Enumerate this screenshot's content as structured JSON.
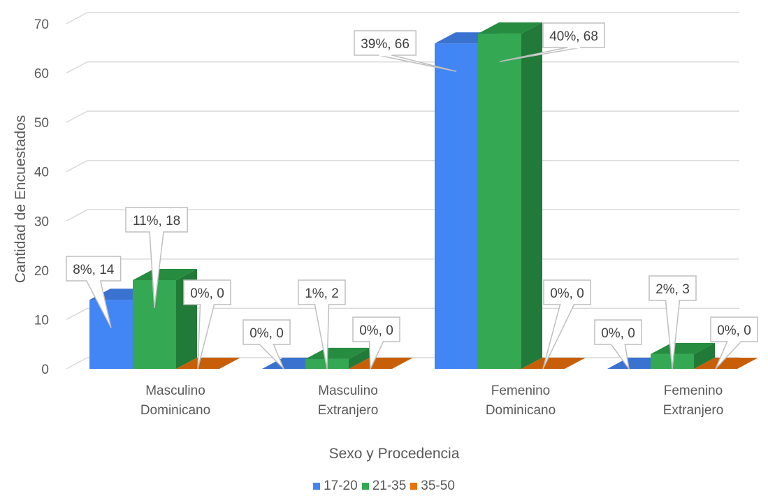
{
  "chart_data": {
    "type": "bar",
    "xlabel": "Sexo y Procedencia",
    "ylabel": "Cantidad de Encuestados",
    "ylim": [
      0,
      70
    ],
    "yticks": [
      "0",
      "10",
      "20",
      "30",
      "40",
      "50",
      "60",
      "70"
    ],
    "categories": [
      [
        "Masculino",
        "Dominicano"
      ],
      [
        "Masculino",
        "Extranjero"
      ],
      [
        "Femenino",
        "Dominicano"
      ],
      [
        "Femenino",
        "Extranjero"
      ]
    ],
    "series": [
      {
        "name": "17-20",
        "color": "#4285f4",
        "side": "#2f6bcf",
        "top": "#3a72d0",
        "values": [
          14,
          0,
          66,
          0
        ],
        "labels": [
          "8%, 14",
          "0%, 0",
          "39%, 66",
          "0%, 0"
        ]
      },
      {
        "name": "21-35",
        "color": "#34a853",
        "side": "#217a38",
        "top": "#268c40",
        "values": [
          18,
          2,
          68,
          3
        ],
        "labels": [
          "11%, 18",
          "1%, 2",
          "40%, 68",
          "2%, 3"
        ]
      },
      {
        "name": "35-50",
        "color": "#e8710a",
        "side": "#b85806",
        "top": "#c85f08",
        "values": [
          0,
          0,
          0,
          0
        ],
        "labels": [
          "0%, 0",
          "0%, 0",
          "0%, 0",
          "0%, 0"
        ]
      }
    ],
    "grid": true,
    "legend_position": "bottom"
  }
}
